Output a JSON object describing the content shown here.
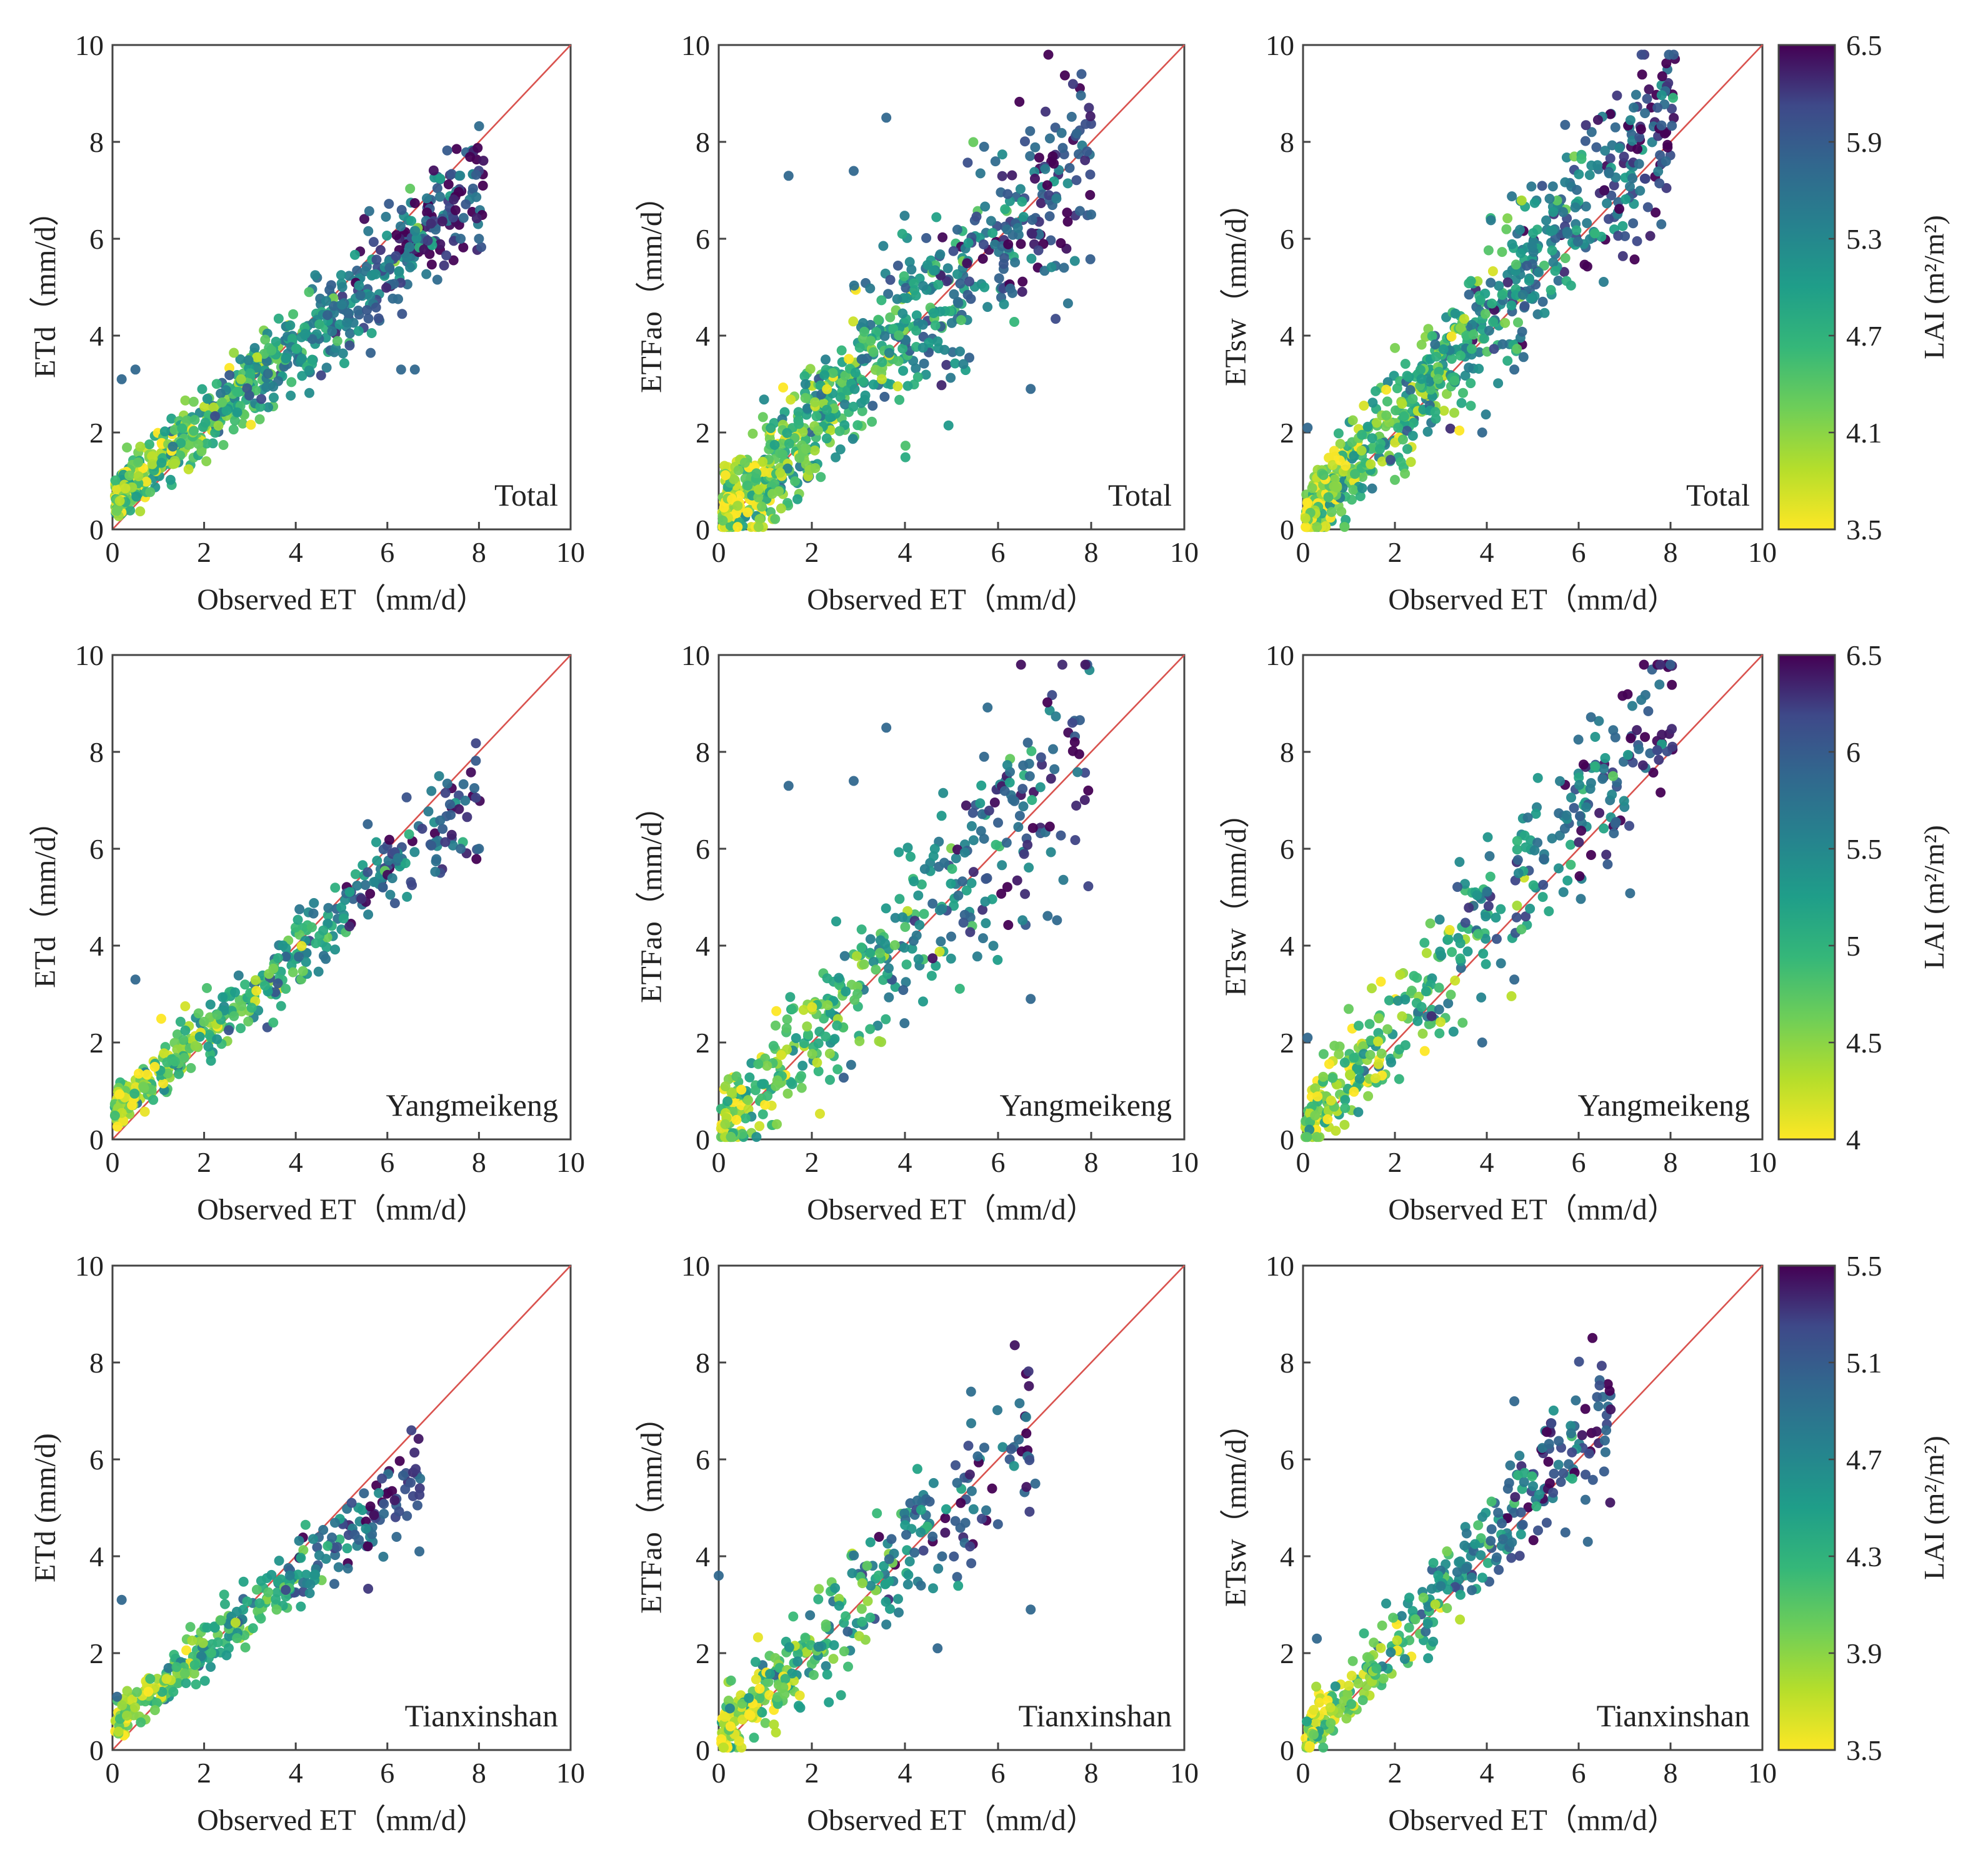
{
  "figure": {
    "x_axis_label": "Observed ET（mm/d）",
    "x_ticks": [
      "0",
      "2",
      "4",
      "6",
      "8",
      "10"
    ],
    "y_ticks": [
      "0",
      "2",
      "4",
      "6",
      "8",
      "10"
    ],
    "colorbar_label": "LAI (m²/m²)",
    "diagonal_color": "#d9534f"
  },
  "chart_data": [
    {
      "type": "scatter",
      "id": "total-etd",
      "row": 0,
      "col": 0,
      "ylabel": "ETd（mm/d）",
      "site": "Total",
      "xlim": [
        0,
        10
      ],
      "ylim": [
        0,
        10
      ],
      "n_points": 760,
      "seed": 11,
      "lai_range": [
        3.5,
        6.5
      ],
      "slope": 0.8,
      "intercept": 0.6,
      "noise": 0.38,
      "x_max": 8.1,
      "outliers": [
        {
          "x": 7.6,
          "y": 6.0
        },
        {
          "x": 8.0,
          "y": 6.0
        },
        {
          "x": 6.3,
          "y": 3.3
        },
        {
          "x": 6.6,
          "y": 3.3
        },
        {
          "x": 0.2,
          "y": 3.1
        },
        {
          "x": 0.5,
          "y": 3.3
        }
      ]
    },
    {
      "type": "scatter",
      "id": "total-etfao",
      "row": 0,
      "col": 1,
      "ylabel": "ETFao（mm/d）",
      "site": "Total",
      "xlim": [
        0,
        10
      ],
      "ylim": [
        0,
        10
      ],
      "n_points": 760,
      "seed": 12,
      "lai_range": [
        3.5,
        6.5
      ],
      "slope": 0.95,
      "intercept": 0.25,
      "noise": 0.75,
      "x_max": 8.0,
      "outliers": [
        {
          "x": 3.6,
          "y": 8.5
        },
        {
          "x": 1.5,
          "y": 7.3
        },
        {
          "x": 2.9,
          "y": 7.4
        },
        {
          "x": 5.7,
          "y": 7.9
        },
        {
          "x": 6.7,
          "y": 2.9
        },
        {
          "x": 8.0,
          "y": 6.5
        }
      ]
    },
    {
      "type": "scatter",
      "id": "total-etsw",
      "row": 0,
      "col": 2,
      "ylabel": "ETsw（mm/d）",
      "site": "Total",
      "xlim": [
        0,
        10
      ],
      "ylim": [
        0,
        10
      ],
      "n_points": 760,
      "seed": 13,
      "lai_range": [
        3.5,
        6.5
      ],
      "slope": 1.05,
      "intercept": 0.15,
      "noise": 0.62,
      "x_max": 8.1,
      "outliers": [
        {
          "x": 6.8,
          "y": 8.3
        },
        {
          "x": 7.9,
          "y": 7.6
        },
        {
          "x": 0.1,
          "y": 2.1
        },
        {
          "x": 4.6,
          "y": 3.3
        },
        {
          "x": 3.9,
          "y": 2.0
        },
        {
          "x": 7.8,
          "y": 6.3
        }
      ]
    },
    {
      "type": "scatter",
      "id": "yang-etd",
      "row": 1,
      "col": 0,
      "ylabel": "ETd（mm/d）",
      "site": "Yangmeikeng",
      "xlim": [
        0,
        10
      ],
      "ylim": [
        0,
        10
      ],
      "n_points": 420,
      "seed": 21,
      "lai_range": [
        4.0,
        6.5
      ],
      "slope": 0.82,
      "intercept": 0.55,
      "noise": 0.35,
      "x_max": 8.1,
      "outliers": [
        {
          "x": 7.6,
          "y": 6.0
        },
        {
          "x": 8.0,
          "y": 6.0
        },
        {
          "x": 0.5,
          "y": 3.3
        }
      ]
    },
    {
      "type": "scatter",
      "id": "yang-etfao",
      "row": 1,
      "col": 1,
      "ylabel": "ETFao（mm/d）",
      "site": "Yangmeikeng",
      "xlim": [
        0,
        10
      ],
      "ylim": [
        0,
        10
      ],
      "n_points": 420,
      "seed": 22,
      "lai_range": [
        4.0,
        6.5
      ],
      "slope": 1.0,
      "intercept": 0.2,
      "noise": 0.78,
      "x_max": 8.0,
      "outliers": [
        {
          "x": 3.6,
          "y": 8.5
        },
        {
          "x": 1.5,
          "y": 7.3
        },
        {
          "x": 2.9,
          "y": 7.4
        },
        {
          "x": 5.7,
          "y": 7.9
        },
        {
          "x": 6.7,
          "y": 2.9
        }
      ]
    },
    {
      "type": "scatter",
      "id": "yang-etsw",
      "row": 1,
      "col": 2,
      "ylabel": "ETsw（mm/d）",
      "site": "Yangmeikeng",
      "xlim": [
        0,
        10
      ],
      "ylim": [
        0,
        10
      ],
      "n_points": 420,
      "seed": 23,
      "lai_range": [
        4.0,
        6.5
      ],
      "slope": 1.08,
      "intercept": 0.15,
      "noise": 0.65,
      "x_max": 8.1,
      "outliers": [
        {
          "x": 6.8,
          "y": 8.3
        },
        {
          "x": 0.1,
          "y": 2.1
        },
        {
          "x": 4.6,
          "y": 3.3
        },
        {
          "x": 3.9,
          "y": 2.0
        }
      ]
    },
    {
      "type": "scatter",
      "id": "tian-etd",
      "row": 2,
      "col": 0,
      "ylabel": "ETd (mm/d)",
      "site": "Tianxinshan",
      "xlim": [
        0,
        10
      ],
      "ylim": [
        0,
        10
      ],
      "n_points": 340,
      "seed": 31,
      "lai_range": [
        3.5,
        5.5
      ],
      "slope": 0.75,
      "intercept": 0.55,
      "noise": 0.3,
      "x_max": 6.8,
      "outliers": [
        {
          "x": 6.2,
          "y": 4.4
        },
        {
          "x": 6.7,
          "y": 4.1
        },
        {
          "x": 0.2,
          "y": 3.1
        },
        {
          "x": 0.1,
          "y": 1.1
        }
      ]
    },
    {
      "type": "scatter",
      "id": "tian-etfao",
      "row": 2,
      "col": 1,
      "ylabel": "ETFao（mm/d）",
      "site": "Tianxinshan",
      "xlim": [
        0,
        10
      ],
      "ylim": [
        0,
        10
      ],
      "n_points": 340,
      "seed": 32,
      "lai_range": [
        3.5,
        5.5
      ],
      "slope": 0.92,
      "intercept": 0.3,
      "noise": 0.55,
      "x_max": 6.7,
      "outliers": [
        {
          "x": 6.7,
          "y": 2.9
        },
        {
          "x": 4.7,
          "y": 2.1
        },
        {
          "x": 0.0,
          "y": 3.6
        },
        {
          "x": 6.8,
          "y": 5.5
        }
      ]
    },
    {
      "type": "scatter",
      "id": "tian-etsw",
      "row": 2,
      "col": 2,
      "ylabel": "ETsw（mm/d）",
      "site": "Tianxinshan",
      "xlim": [
        0,
        10
      ],
      "ylim": [
        0,
        10
      ],
      "n_points": 340,
      "seed": 33,
      "lai_range": [
        3.5,
        5.5
      ],
      "slope": 1.02,
      "intercept": 0.15,
      "noise": 0.45,
      "x_max": 6.7,
      "outliers": [
        {
          "x": 4.6,
          "y": 7.2
        },
        {
          "x": 6.6,
          "y": 6.6
        },
        {
          "x": 6.2,
          "y": 4.3
        },
        {
          "x": 0.3,
          "y": 2.3
        }
      ]
    }
  ],
  "colorbars": [
    {
      "row": 0,
      "label": "LAI (m²/m²)",
      "min": 3.5,
      "max": 6.5,
      "ticks": [
        "3.5",
        "4.1",
        "4.7",
        "5.3",
        "5.9",
        "6.5"
      ]
    },
    {
      "row": 1,
      "label": "LAI (m²/m²)",
      "min": 4.0,
      "max": 6.5,
      "ticks": [
        "4",
        "4.5",
        "5",
        "5.5",
        "6",
        "6.5"
      ]
    },
    {
      "row": 2,
      "label": "LAI (m²/m²)",
      "min": 3.5,
      "max": 5.5,
      "ticks": [
        "3.5",
        "3.9",
        "4.3",
        "4.7",
        "5.1",
        "5.5"
      ]
    }
  ]
}
